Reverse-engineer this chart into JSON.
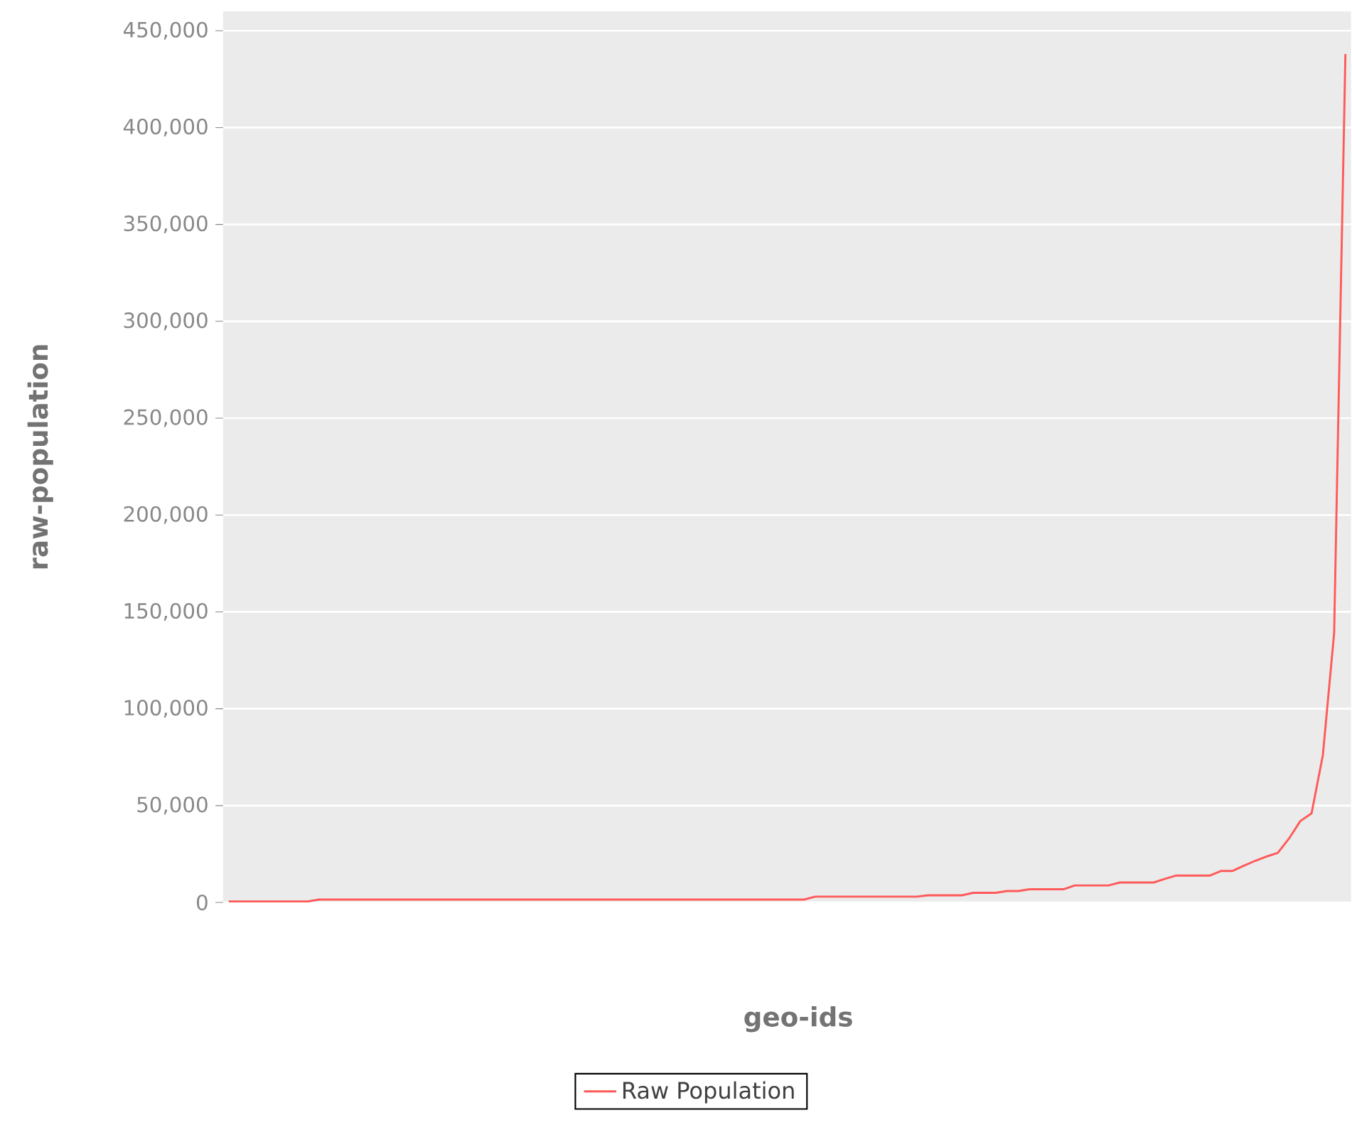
{
  "chart_data": {
    "type": "line",
    "xlabel": "geo-ids",
    "ylabel": "raw-population",
    "categories": [
      null,
      null,
      null,
      null,
      null,
      null,
      null,
      null,
      null,
      null,
      null,
      null,
      null,
      null,
      null,
      null,
      null,
      null,
      null,
      null,
      null,
      null,
      null,
      null,
      null,
      null,
      null,
      null,
      null,
      null,
      null,
      null,
      null,
      null,
      null,
      null,
      null,
      null,
      null,
      null,
      null,
      null,
      null,
      null,
      null,
      null,
      null,
      null,
      null,
      null,
      null,
      null,
      null,
      null,
      null,
      null,
      null,
      null,
      null,
      null,
      null,
      null,
      null,
      null,
      null,
      null,
      null,
      null,
      null,
      null,
      null,
      null,
      null,
      null,
      null,
      null,
      null,
      null,
      null,
      null,
      null,
      null,
      null,
      null,
      null,
      null,
      null,
      null,
      null,
      null,
      null,
      null,
      null,
      null,
      null,
      null,
      null,
      null,
      null,
      null
    ],
    "series": [
      {
        "name": "Raw Population",
        "color": "#ff5a5a",
        "values": [
          500,
          500,
          500,
          500,
          500,
          500,
          500,
          500,
          1500,
          1500,
          1500,
          1500,
          1500,
          1500,
          1500,
          1500,
          1500,
          1500,
          1500,
          1500,
          1500,
          1500,
          1500,
          1500,
          1500,
          1500,
          1500,
          1500,
          1500,
          1500,
          1500,
          1500,
          1500,
          1500,
          1500,
          1500,
          1500,
          1500,
          1500,
          1500,
          1500,
          1500,
          1500,
          1500,
          1500,
          1500,
          1500,
          1500,
          1500,
          1500,
          1500,
          1500,
          3000,
          3000,
          3000,
          3000,
          3000,
          3000,
          3000,
          3000,
          3000,
          3000,
          3700,
          3700,
          3700,
          3700,
          5000,
          5000,
          5000,
          5900,
          5900,
          6800,
          6800,
          6800,
          6800,
          8800,
          8800,
          8800,
          8800,
          10300,
          10300,
          10300,
          10300,
          12200,
          13900,
          13900,
          13900,
          13900,
          16300,
          16300,
          19000,
          21500,
          23700,
          25600,
          33000,
          42000,
          46000,
          76000,
          139000,
          438000
        ]
      }
    ],
    "ylim": [
      0,
      460000
    ],
    "yticks": [
      {
        "value": 0,
        "label": "0"
      },
      {
        "value": 50000,
        "label": "50,000"
      },
      {
        "value": 100000,
        "label": "100,000"
      },
      {
        "value": 150000,
        "label": "150,000"
      },
      {
        "value": 200000,
        "label": "200,000"
      },
      {
        "value": 250000,
        "label": "250,000"
      },
      {
        "value": 300000,
        "label": "300,000"
      },
      {
        "value": 350000,
        "label": "350,000"
      },
      {
        "value": 400000,
        "label": "400,000"
      },
      {
        "value": 450000,
        "label": "450,000"
      }
    ],
    "grid": "y",
    "legend": "bottom",
    "tick_labels": "y",
    "marker": "none",
    "line_style": "solid"
  }
}
